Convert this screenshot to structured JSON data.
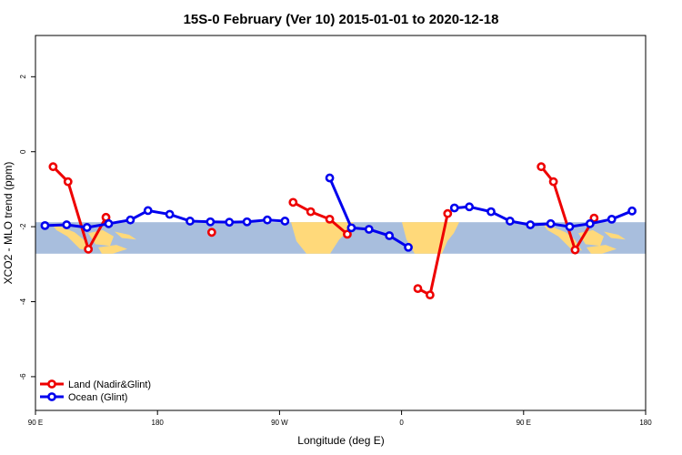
{
  "chart_data": {
    "type": "line",
    "title": "15S-0 February (Ver 10)   2015-01-01 to 2020-12-18",
    "xlabel": "Longitude (deg E)",
    "ylabel": "XCO2 - MLO trend (ppm)",
    "xlim": [
      90,
      540
    ],
    "ylim": [
      -6.9,
      3.1
    ],
    "x_ticks": [
      {
        "value": 90,
        "label": "90 E"
      },
      {
        "value": 180,
        "label": "180"
      },
      {
        "value": 270,
        "label": "90 W"
      },
      {
        "value": 360,
        "label": "0"
      },
      {
        "value": 450,
        "label": "90 E"
      },
      {
        "value": 540,
        "label": "180"
      }
    ],
    "y_ticks": [
      {
        "value": 2,
        "label": "2"
      },
      {
        "value": 0,
        "label": "0"
      },
      {
        "value": -2,
        "label": "-2"
      },
      {
        "value": -4,
        "label": "-4"
      },
      {
        "value": -6,
        "label": "-6"
      }
    ],
    "map_band": {
      "y_top": -1.88,
      "y_bottom": -2.72,
      "ocean_color": "#a8bedd",
      "land_color": "#ffd97a"
    },
    "legend_position": "bottom-left",
    "series": [
      {
        "name": "Land (Nadir&Glint)",
        "color": "#ee0000",
        "segments": [
          [
            [
              103,
              -0.4
            ],
            [
              114,
              -0.8
            ],
            [
              129,
              -2.6
            ],
            [
              142,
              -1.75
            ]
          ],
          [
            [
              220,
              -2.15
            ]
          ],
          [
            [
              280,
              -1.35
            ],
            [
              293,
              -1.6
            ],
            [
              307,
              -1.8
            ],
            [
              320,
              -2.2
            ]
          ],
          [
            [
              372,
              -3.65
            ],
            [
              381,
              -3.82
            ],
            [
              394,
              -1.65
            ]
          ],
          [
            [
              463,
              -0.4
            ],
            [
              472,
              -0.8
            ],
            [
              488,
              -2.62
            ],
            [
              502,
              -1.77
            ]
          ]
        ]
      },
      {
        "name": "Ocean (Glint)",
        "color": "#0000ee",
        "segments": [
          [
            [
              97,
              -1.97
            ],
            [
              113,
              -1.95
            ],
            [
              128,
              -2.02
            ],
            [
              144,
              -1.92
            ],
            [
              160,
              -1.82
            ],
            [
              173,
              -1.57
            ],
            [
              189,
              -1.67
            ],
            [
              204,
              -1.85
            ],
            [
              219,
              -1.87
            ],
            [
              233,
              -1.88
            ],
            [
              246,
              -1.87
            ],
            [
              261,
              -1.82
            ],
            [
              274,
              -1.85
            ]
          ],
          [
            [
              307,
              -0.7
            ],
            [
              323,
              -2.03
            ],
            [
              336,
              -2.07
            ],
            [
              351,
              -2.24
            ],
            [
              365,
              -2.55
            ]
          ],
          [
            [
              399,
              -1.5
            ],
            [
              410,
              -1.47
            ],
            [
              426,
              -1.6
            ],
            [
              440,
              -1.85
            ],
            [
              455,
              -1.95
            ],
            [
              470,
              -1.92
            ],
            [
              484,
              -2.0
            ],
            [
              499,
              -1.92
            ],
            [
              515,
              -1.8
            ],
            [
              530,
              -1.58
            ]
          ]
        ]
      }
    ]
  }
}
